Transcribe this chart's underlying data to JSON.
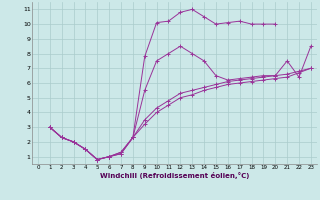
{
  "xlabel": "Windchill (Refroidissement éolien,°C)",
  "bg_color": "#cce8e8",
  "line_color": "#993399",
  "ylim": [
    0.5,
    11.5
  ],
  "xlim": [
    -0.5,
    23.5
  ],
  "yticks": [
    1,
    2,
    3,
    4,
    5,
    6,
    7,
    8,
    9,
    10,
    11
  ],
  "xticks": [
    0,
    1,
    2,
    3,
    4,
    5,
    6,
    7,
    8,
    9,
    10,
    11,
    12,
    13,
    14,
    15,
    16,
    17,
    18,
    19,
    20,
    21,
    22,
    23
  ],
  "line1_x": [
    1,
    2,
    3,
    4,
    5,
    6,
    7,
    8,
    9,
    10,
    11,
    12,
    13,
    14,
    15,
    16,
    17,
    18,
    19,
    20
  ],
  "line1_y": [
    3.0,
    2.3,
    2.0,
    1.5,
    0.8,
    1.0,
    1.2,
    2.3,
    7.8,
    10.1,
    10.2,
    10.8,
    11.0,
    10.5,
    10.0,
    10.1,
    10.2,
    10.0,
    10.0,
    10.0
  ],
  "line2_x": [
    1,
    2,
    3,
    4,
    5,
    6,
    7,
    8,
    9,
    10,
    11,
    12,
    13,
    14,
    15,
    16,
    17,
    18,
    19,
    20,
    21,
    22,
    23
  ],
  "line2_y": [
    3.0,
    2.3,
    2.0,
    1.5,
    0.8,
    1.0,
    1.2,
    2.3,
    5.5,
    7.5,
    8.0,
    8.5,
    8.0,
    7.5,
    6.5,
    6.2,
    6.3,
    6.4,
    6.5,
    6.5,
    7.5,
    6.4,
    8.5
  ],
  "line3_x": [
    1,
    2,
    3,
    4,
    5,
    6,
    7,
    8,
    9,
    10,
    11,
    12,
    13,
    14,
    15,
    16,
    17,
    18,
    19,
    20,
    21,
    22,
    23
  ],
  "line3_y": [
    3.0,
    2.3,
    2.0,
    1.5,
    0.8,
    1.0,
    1.3,
    2.3,
    3.5,
    4.3,
    4.8,
    5.3,
    5.5,
    5.7,
    5.9,
    6.1,
    6.2,
    6.3,
    6.4,
    6.5,
    6.6,
    6.8,
    7.0
  ],
  "line4_x": [
    1,
    2,
    3,
    4,
    5,
    6,
    7,
    8,
    9,
    10,
    11,
    12,
    13,
    14,
    15,
    16,
    17,
    18,
    19,
    20,
    21,
    22,
    23
  ],
  "line4_y": [
    3.0,
    2.3,
    2.0,
    1.5,
    0.8,
    1.0,
    1.3,
    2.3,
    3.2,
    4.0,
    4.5,
    5.0,
    5.2,
    5.5,
    5.7,
    5.9,
    6.0,
    6.1,
    6.2,
    6.3,
    6.4,
    6.7,
    7.0
  ]
}
